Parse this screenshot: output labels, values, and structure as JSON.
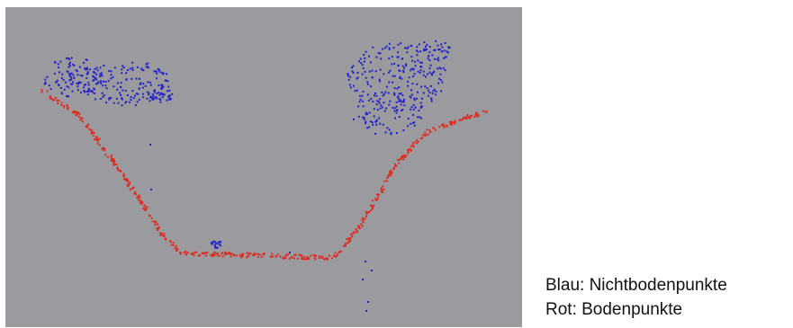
{
  "legend": {
    "blue": "Blau: Nichtbodenpunkte",
    "red": "Rot: Bodenpunkte"
  }
}
